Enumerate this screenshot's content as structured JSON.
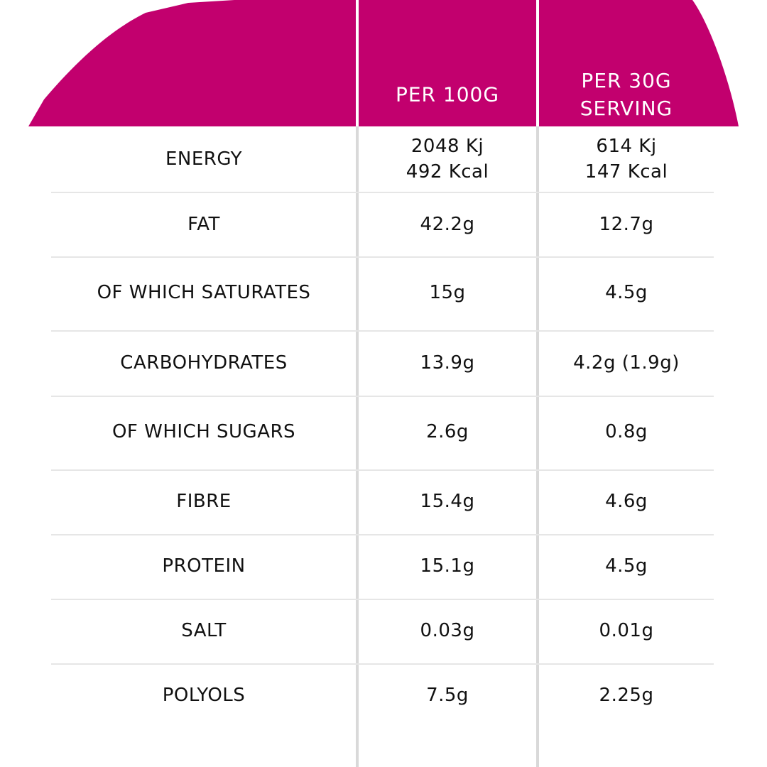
{
  "header": {
    "columns": [
      [
        "PER 100G"
      ],
      [
        "PER 30G",
        "SERVING"
      ]
    ]
  },
  "table": {
    "rows": [
      {
        "label": "ENERGY",
        "per_100g": [
          "2048 Kj",
          "492 Kcal"
        ],
        "per_serving": [
          "614 Kj",
          "147 Kcal"
        ]
      },
      {
        "label": "FAT",
        "per_100g": [
          "42.2g"
        ],
        "per_serving": [
          "12.7g"
        ]
      },
      {
        "label": "OF WHICH SATURATES",
        "per_100g": [
          "15g"
        ],
        "per_serving": [
          "4.5g"
        ]
      },
      {
        "label": "CARBOHYDRATES",
        "per_100g": [
          "13.9g"
        ],
        "per_serving": [
          "4.2g (1.9g)"
        ]
      },
      {
        "label": "OF WHICH SUGARS",
        "per_100g": [
          "2.6g"
        ],
        "per_serving": [
          "0.8g"
        ]
      },
      {
        "label": "FIBRE",
        "per_100g": [
          "15.4g"
        ],
        "per_serving": [
          "4.6g"
        ]
      },
      {
        "label": "PROTEIN",
        "per_100g": [
          "15.1g"
        ],
        "per_serving": [
          "4.5g"
        ]
      },
      {
        "label": "SALT",
        "per_100g": [
          "0.03g"
        ],
        "per_serving": [
          "0.01g"
        ]
      },
      {
        "label": "POLYOLS",
        "per_100g": [
          "7.5g"
        ],
        "per_serving": [
          "2.25g"
        ]
      }
    ]
  }
}
